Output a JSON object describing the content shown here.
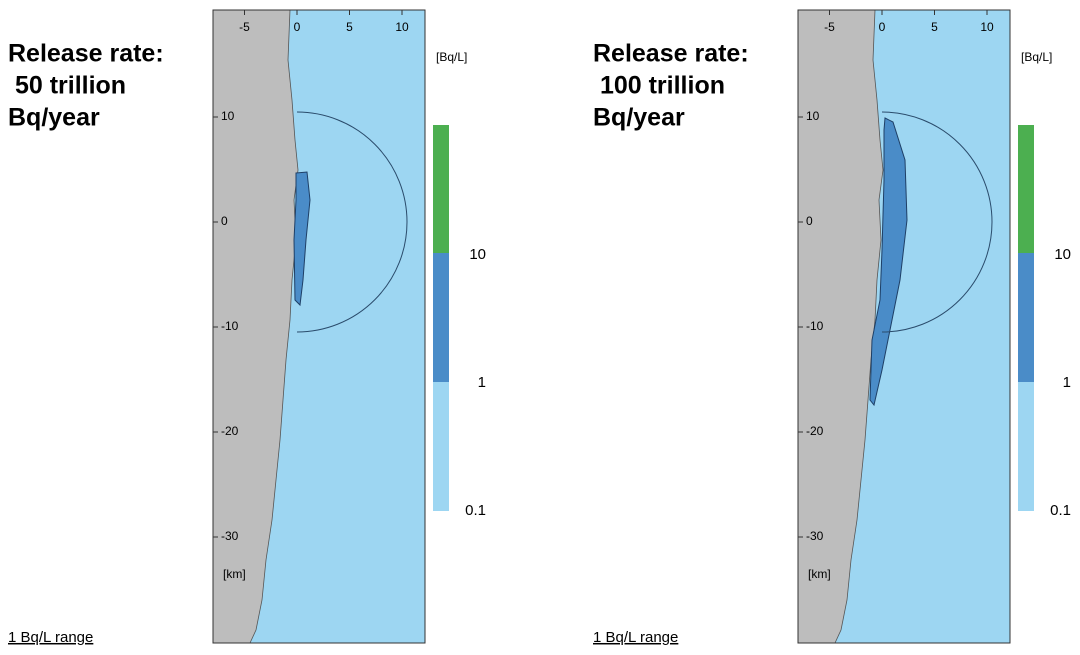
{
  "panels": [
    {
      "title_lines": [
        "Release rate:",
        " 50 trillion",
        "Bq/year"
      ],
      "x_ticks": [
        -5,
        0,
        5,
        10
      ],
      "y_ticks": [
        10,
        0,
        -10,
        -20,
        -30
      ],
      "unit_km": "[km]",
      "unit_conc": "[Bq/L]",
      "colorbar_labels": [
        "10",
        "1",
        "0.1"
      ],
      "footer": "1 Bq/L range"
    },
    {
      "title_lines": [
        "Release rate:",
        " 100 trillion",
        "Bq/year"
      ],
      "x_ticks": [
        -5,
        0,
        5,
        10
      ],
      "y_ticks": [
        10,
        0,
        -10,
        -20,
        -30
      ],
      "unit_km": "[km]",
      "unit_conc": "[Bq/L]",
      "colorbar_labels": [
        "10",
        "1",
        "0.1"
      ],
      "footer": "1 Bq/L range"
    }
  ]
}
